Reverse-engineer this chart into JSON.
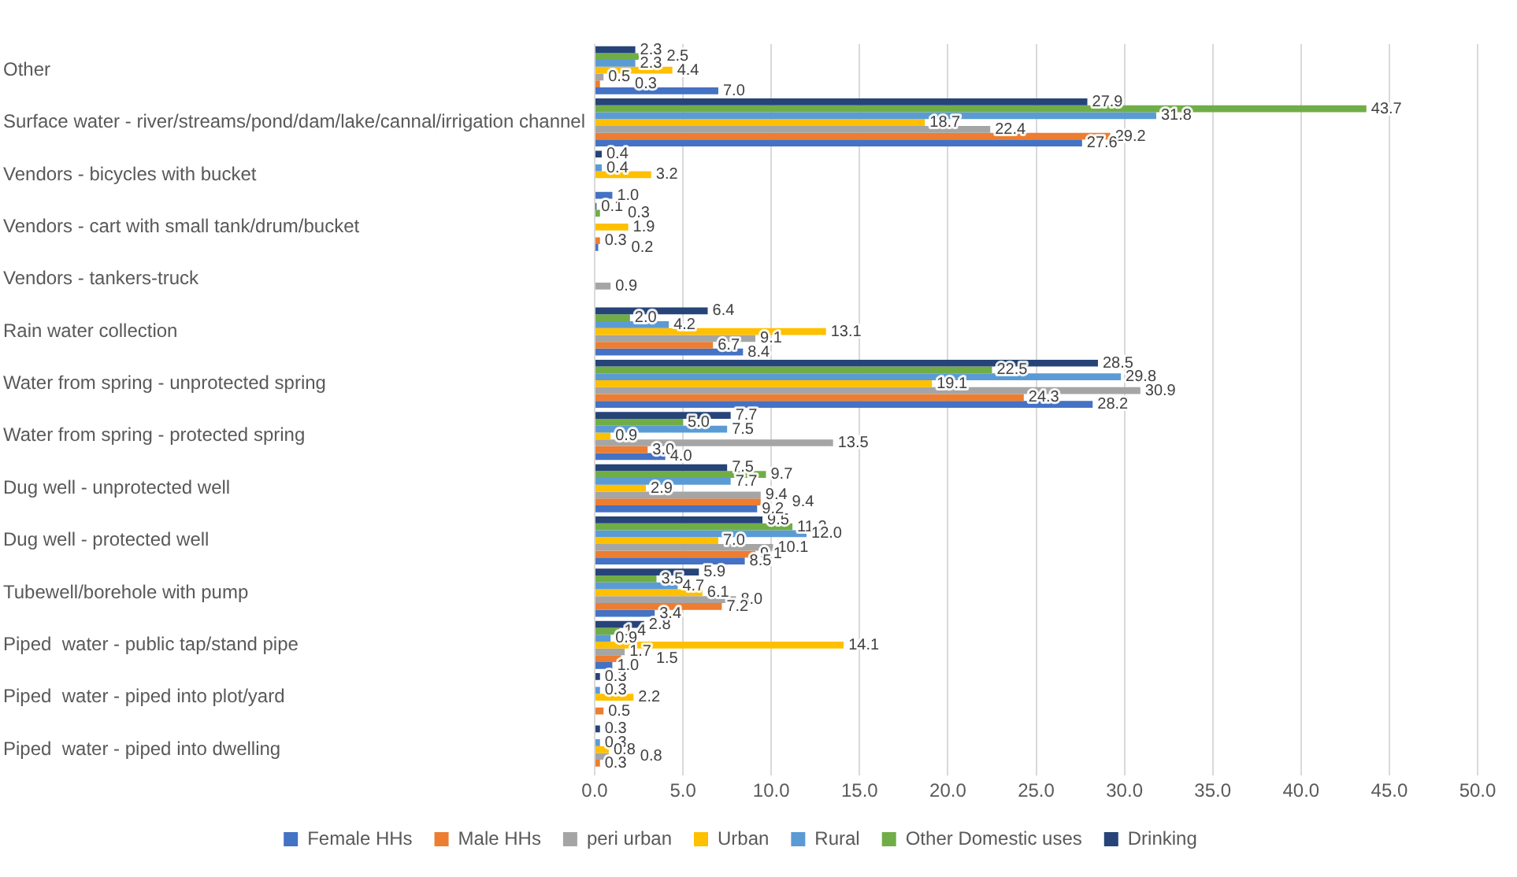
{
  "chart_data": {
    "type": "bar",
    "orientation": "horizontal",
    "categories": [
      "Other",
      "Surface water - river/streams/pond/dam/lake/cannal/irrigation channel",
      "Vendors - bicycles with bucket",
      "Vendors - cart with small tank/drum/bucket",
      "Vendors - tankers-truck",
      "Rain water collection",
      "Water from spring - unprotected spring",
      "Water from spring - protected spring",
      "Dug well - unprotected well",
      "Dug well - protected well",
      "Tubewell/borehole with pump",
      "Piped  water - public tap/stand pipe",
      "Piped  water - piped into plot/yard",
      "Piped  water - piped into dwelling"
    ],
    "series": [
      {
        "name": "Female HHs",
        "color": "#4472c4",
        "values": [
          7.0,
          27.6,
          1.0,
          0.2,
          null,
          8.4,
          28.2,
          4.0,
          9.2,
          8.5,
          3.4,
          1.0,
          null,
          null
        ],
        "value_labels": [
          "7.0",
          "27.6",
          "1.0",
          "0.2",
          null,
          "8.4",
          "28.2",
          "4.0",
          "9.2",
          "8.5",
          "3.4",
          "1.0",
          null,
          null
        ]
      },
      {
        "name": "Male HHs",
        "color": "#ed7d31",
        "values": [
          0.3,
          29.2,
          null,
          0.3,
          null,
          6.7,
          24.3,
          3.0,
          9.4,
          9.1,
          7.2,
          1.5,
          0.5,
          0.3
        ],
        "value_labels": [
          "0.3",
          "29.2",
          null,
          "0.3",
          null,
          "6.7",
          "24.3",
          "3.0",
          "9.4",
          "9.1",
          "7.2",
          "1.5",
          "0.5",
          "0.3"
        ]
      },
      {
        "name": "peri urban",
        "color": "#a5a5a5",
        "values": [
          0.5,
          22.4,
          null,
          null,
          0.9,
          9.1,
          30.9,
          13.5,
          9.4,
          10.1,
          8.0,
          1.7,
          null,
          0.8
        ],
        "value_labels": [
          "0.5",
          "22.4",
          null,
          null,
          "0.9",
          "9.1",
          "30.9",
          "13.5",
          "9.4",
          "10.1",
          "8.0",
          "1.7",
          null,
          "0.8"
        ]
      },
      {
        "name": "Urban",
        "color": "#ffc000",
        "values": [
          4.4,
          18.7,
          3.2,
          1.9,
          null,
          13.1,
          19.1,
          0.9,
          2.9,
          7.0,
          6.1,
          14.1,
          2.2,
          0.8
        ],
        "value_labels": [
          "4.4",
          "18.7",
          "3.2",
          "1.9",
          null,
          "13.1",
          "19.1",
          "0.9",
          "2.9",
          "7.0",
          "6.1",
          "14.1",
          "2.2",
          "0.8"
        ]
      },
      {
        "name": "Rural",
        "color": "#5b9bd5",
        "values": [
          2.3,
          31.8,
          0.4,
          null,
          null,
          4.2,
          29.8,
          7.5,
          7.7,
          12.0,
          4.7,
          0.9,
          0.3,
          0.3
        ],
        "value_labels": [
          "2.3",
          "31.8",
          "0.4",
          null,
          null,
          "4.2",
          "29.8",
          "7.5",
          "7.7",
          "12.0",
          "4.7",
          "0.9",
          "0.3",
          "0.3"
        ]
      },
      {
        "name": "Other Domestic uses",
        "color": "#70ad47",
        "values": [
          2.5,
          43.7,
          null,
          0.3,
          null,
          2.0,
          22.5,
          5.0,
          9.7,
          11.2,
          3.5,
          1.4,
          null,
          null
        ],
        "value_labels": [
          "2.5",
          "43.7",
          null,
          "0.3",
          null,
          "2.0",
          "22.5",
          "5.0",
          "9.7",
          "11.2",
          "3.5",
          "1.4",
          null,
          null
        ]
      },
      {
        "name": "Drinking",
        "color": "#264478",
        "values": [
          2.3,
          27.9,
          0.4,
          0.1,
          null,
          6.4,
          28.5,
          7.7,
          7.5,
          9.5,
          5.9,
          2.8,
          0.3,
          0.3
        ],
        "value_labels": [
          "2.3",
          "27.9",
          "0.4",
          "0.1",
          null,
          "6.4",
          "28.5",
          "7.7",
          "7.5",
          "9.5",
          "5.9",
          "2.8",
          "0.3",
          "0.3"
        ]
      }
    ],
    "xlim": [
      0,
      50
    ],
    "xticks": [
      {
        "value": 0,
        "label": "0.0"
      },
      {
        "value": 5,
        "label": "5.0"
      },
      {
        "value": 10,
        "label": "10.0"
      },
      {
        "value": 15,
        "label": "15.0"
      },
      {
        "value": 20,
        "label": "20.0"
      },
      {
        "value": 25,
        "label": "25.0"
      },
      {
        "value": 30,
        "label": "30.0"
      },
      {
        "value": 35,
        "label": "35.0"
      },
      {
        "value": 40,
        "label": "40.0"
      },
      {
        "value": 45,
        "label": "45.0"
      },
      {
        "value": 50,
        "label": "50.0"
      }
    ],
    "grid": "x",
    "legend": "bottom"
  }
}
